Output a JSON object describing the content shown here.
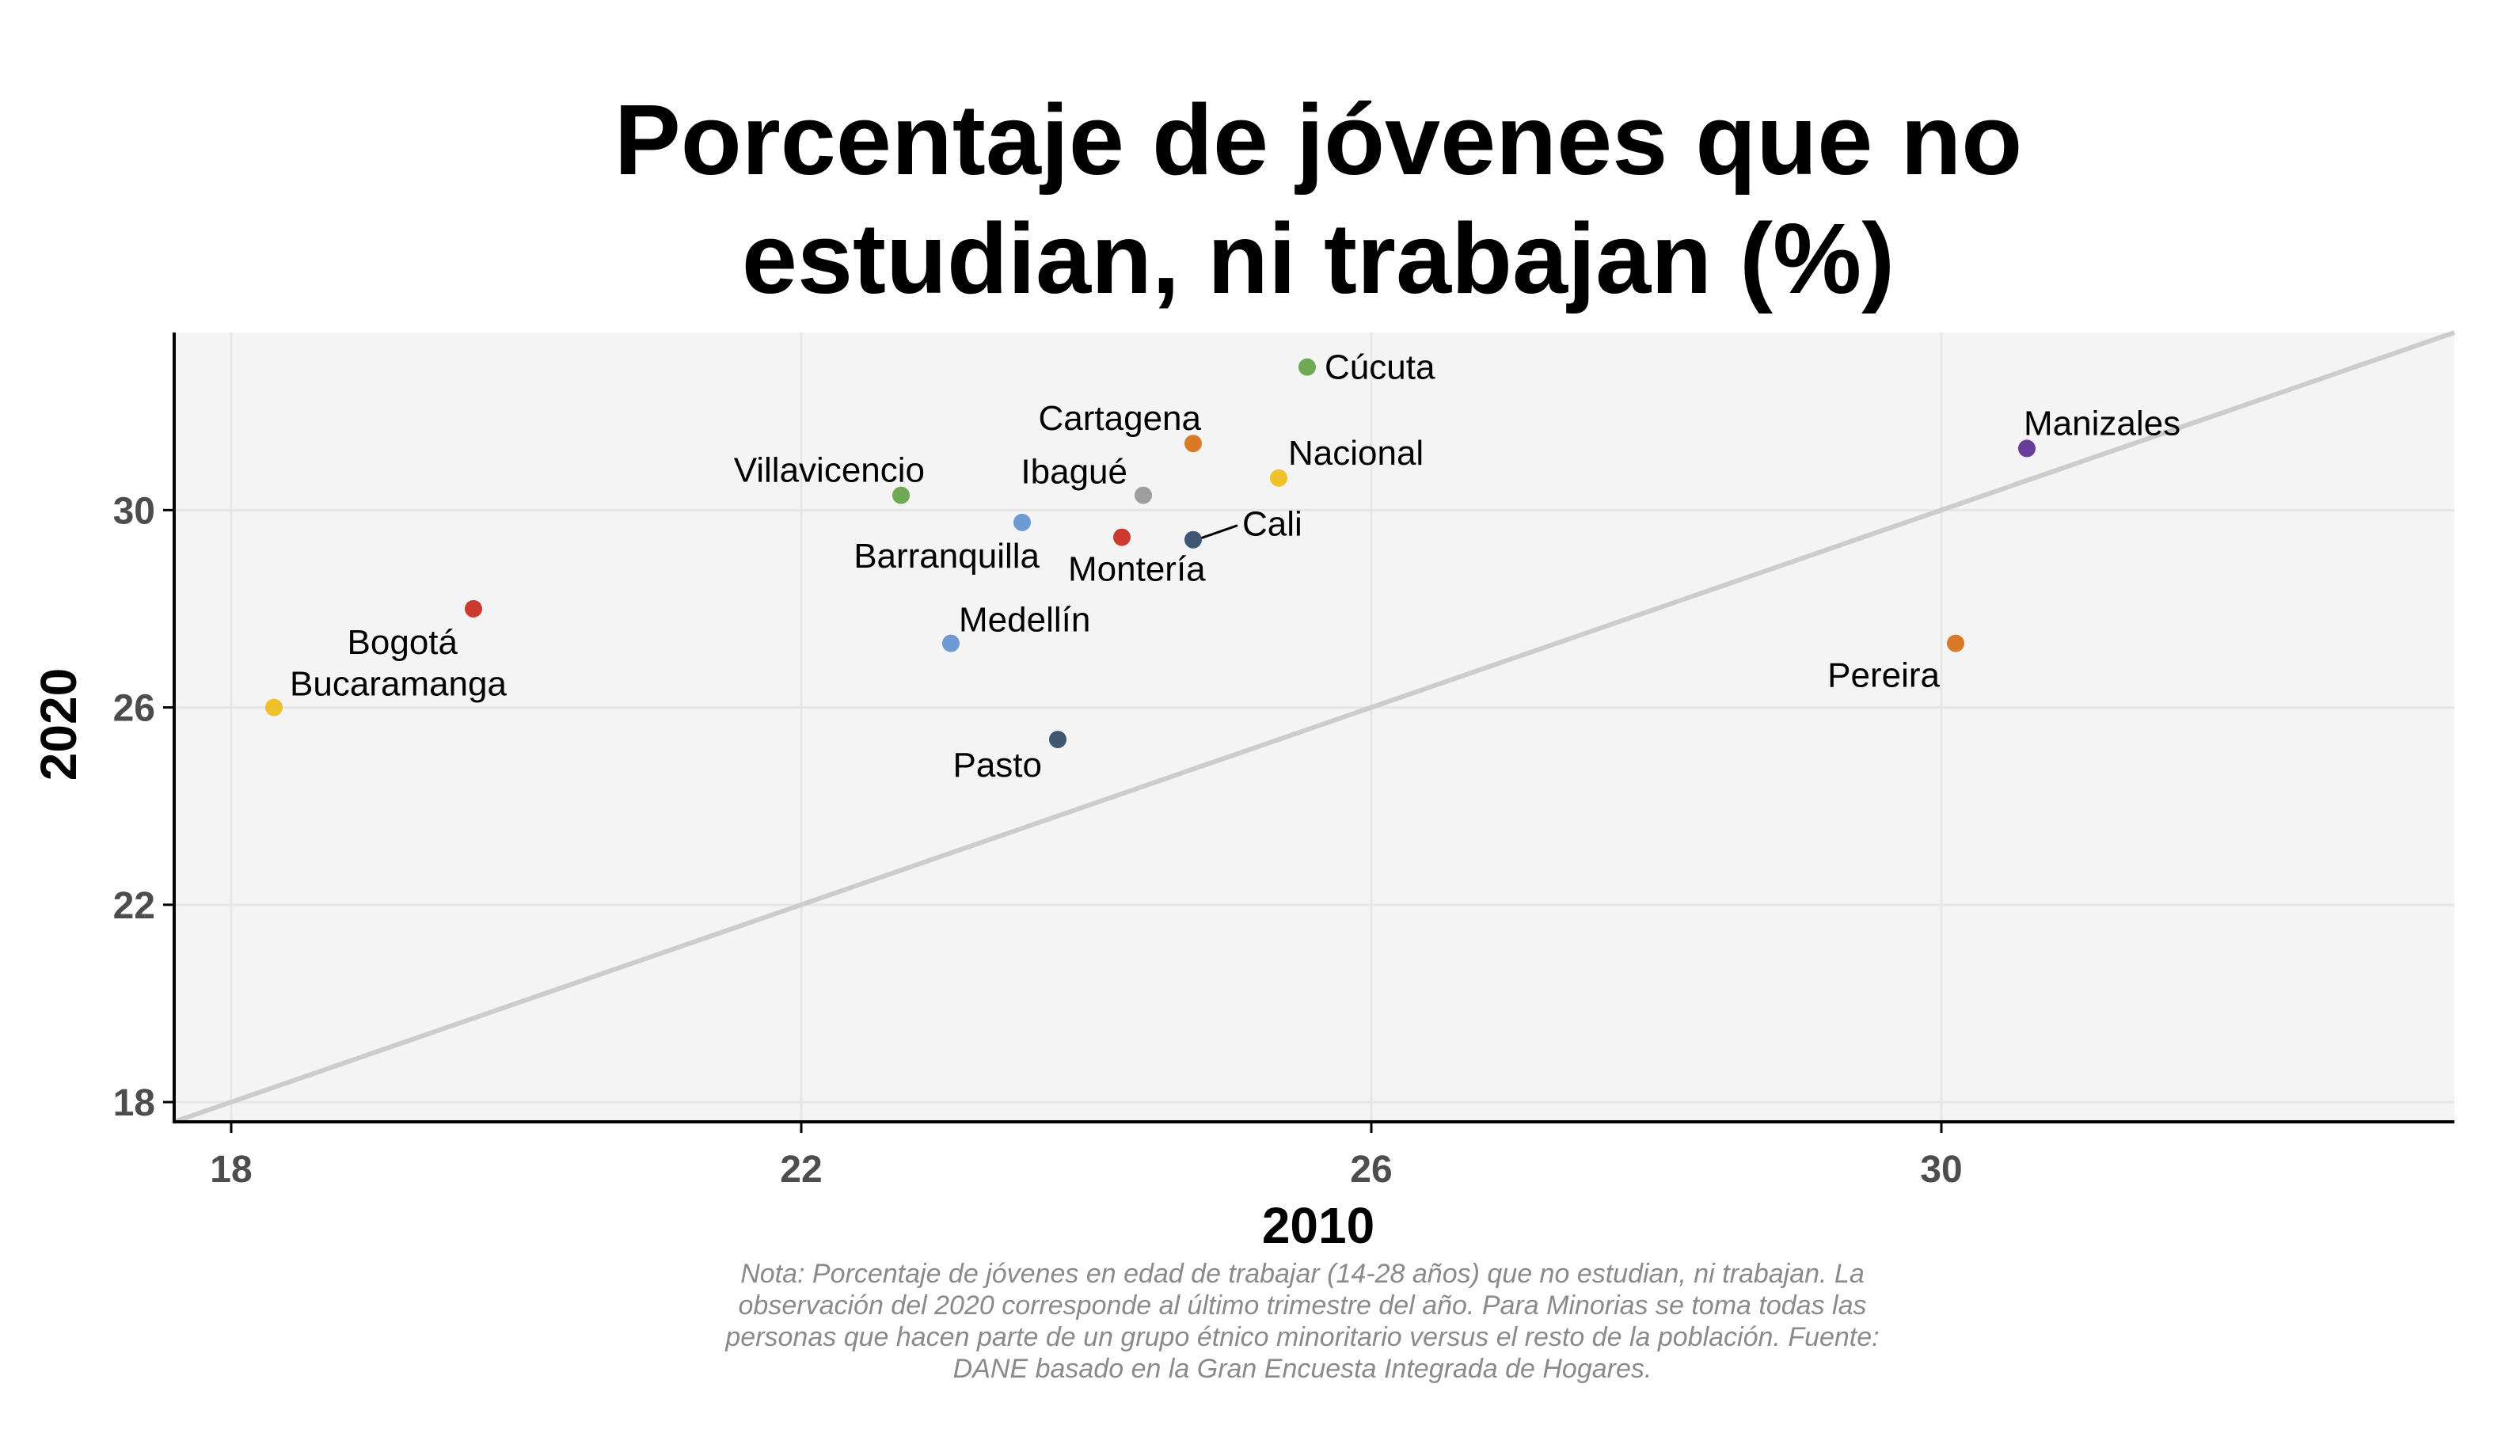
{
  "chart_data": {
    "type": "scatter",
    "title": [
      "Porcentaje de jóvenes que no",
      "estudian, ni trabajan (%)"
    ],
    "xlabel": "2010",
    "ylabel": "2020",
    "xlim": [
      17.6,
      33.6
    ],
    "ylim": [
      17.6,
      33.6
    ],
    "x_ticks": [
      18,
      22,
      26,
      30
    ],
    "y_ticks": [
      18,
      22,
      26,
      30
    ],
    "grid": true,
    "reference_line": "y = x",
    "colors": {
      "panel_bg": "#f4f4f4",
      "grid": "#e6e6e6",
      "reference_line": "#cccccc",
      "axis": "#000000"
    },
    "points": [
      {
        "label": "Cúcuta",
        "x": 25.55,
        "y": 32.9,
        "color": "#6ea956"
      },
      {
        "label": "Cartagena",
        "x": 24.75,
        "y": 31.35,
        "color": "#d97a2b"
      },
      {
        "label": "Nacional",
        "x": 25.35,
        "y": 30.65,
        "color": "#efc12a"
      },
      {
        "label": "Manizales",
        "x": 30.6,
        "y": 31.25,
        "color": "#6a3d9a"
      },
      {
        "label": "Villavicencio",
        "x": 22.7,
        "y": 30.3,
        "color": "#6ea956"
      },
      {
        "label": "Ibagué",
        "x": 24.4,
        "y": 30.3,
        "color": "#9e9e9e"
      },
      {
        "label": "Barranquilla",
        "x": 23.55,
        "y": 29.75,
        "color": "#6f9bd5"
      },
      {
        "label": "Montería",
        "x": 24.25,
        "y": 29.45,
        "color": "#cc3a2f"
      },
      {
        "label": "Cali",
        "x": 24.75,
        "y": 29.4,
        "color": "#3e5671"
      },
      {
        "label": "Bogotá",
        "x": 19.7,
        "y": 28.0,
        "color": "#cc3a2f"
      },
      {
        "label": "Medellín",
        "x": 23.05,
        "y": 27.3,
        "color": "#6f9bd5"
      },
      {
        "label": "Pereira",
        "x": 30.1,
        "y": 27.3,
        "color": "#d97a2b"
      },
      {
        "label": "Bucaramanga",
        "x": 18.3,
        "y": 26.0,
        "color": "#efc12a"
      },
      {
        "label": "Pasto",
        "x": 23.8,
        "y": 25.35,
        "color": "#3e5671"
      }
    ],
    "note": [
      "Nota: Porcentaje de jóvenes en edad de trabajar (14-28 años) que no estudian, ni trabajan. La",
      "observación del 2020 corresponde al último trimestre del año. Para Minorias se toma todas las",
      "personas que hacen parte de un grupo étnico minoritario versus el resto de la población. Fuente:",
      "DANE basado en la Gran Encuesta Integrada de Hogares."
    ]
  }
}
